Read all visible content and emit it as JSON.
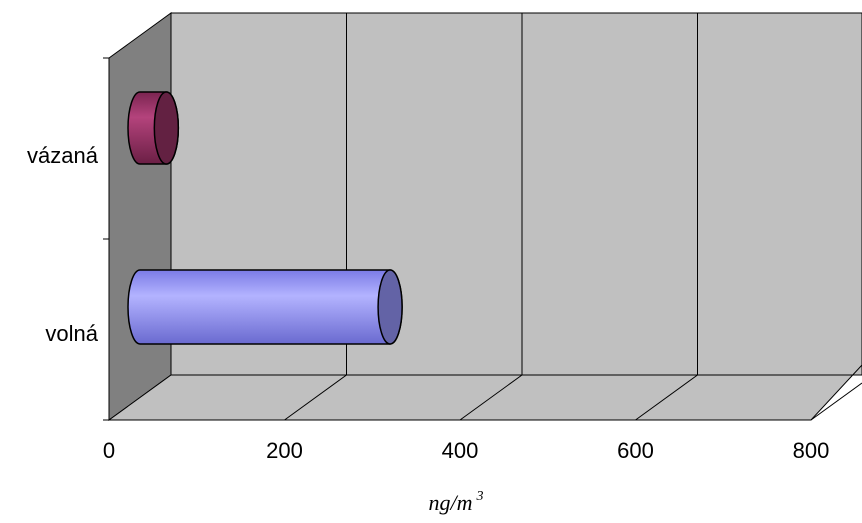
{
  "chart_data": {
    "type": "bar",
    "orientation": "horizontal",
    "three_d": true,
    "bar_shape": "cylinder",
    "categories": [
      "vázaná",
      "volná"
    ],
    "values": [
      30,
      285
    ],
    "colors": [
      "#993366",
      "#9999ff"
    ],
    "xlabel": "ng/m",
    "xlabel_superscript": "3",
    "xlim": [
      0,
      800
    ],
    "xticks": [
      "0",
      "200",
      "400",
      "600",
      "800"
    ],
    "grid": true,
    "background": "#c0c0c0",
    "side_wall": "#808080"
  }
}
